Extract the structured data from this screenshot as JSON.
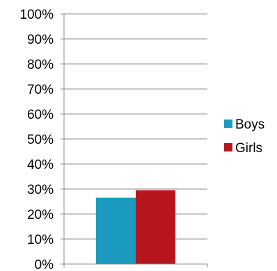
{
  "chart_data": {
    "type": "bar",
    "categories": [
      ""
    ],
    "series": [
      {
        "name": "Boys",
        "values": [
          26.5
        ],
        "color": "#1a9bbf"
      },
      {
        "name": "Girls",
        "values": [
          29.5
        ],
        "color": "#b5161c"
      }
    ],
    "ylim": [
      0,
      100
    ],
    "yticks": [
      "0%",
      "10%",
      "20%",
      "30%",
      "40%",
      "50%",
      "60%",
      "70%",
      "80%",
      "90%",
      "100%"
    ],
    "grid": true,
    "legend_position": "right"
  }
}
